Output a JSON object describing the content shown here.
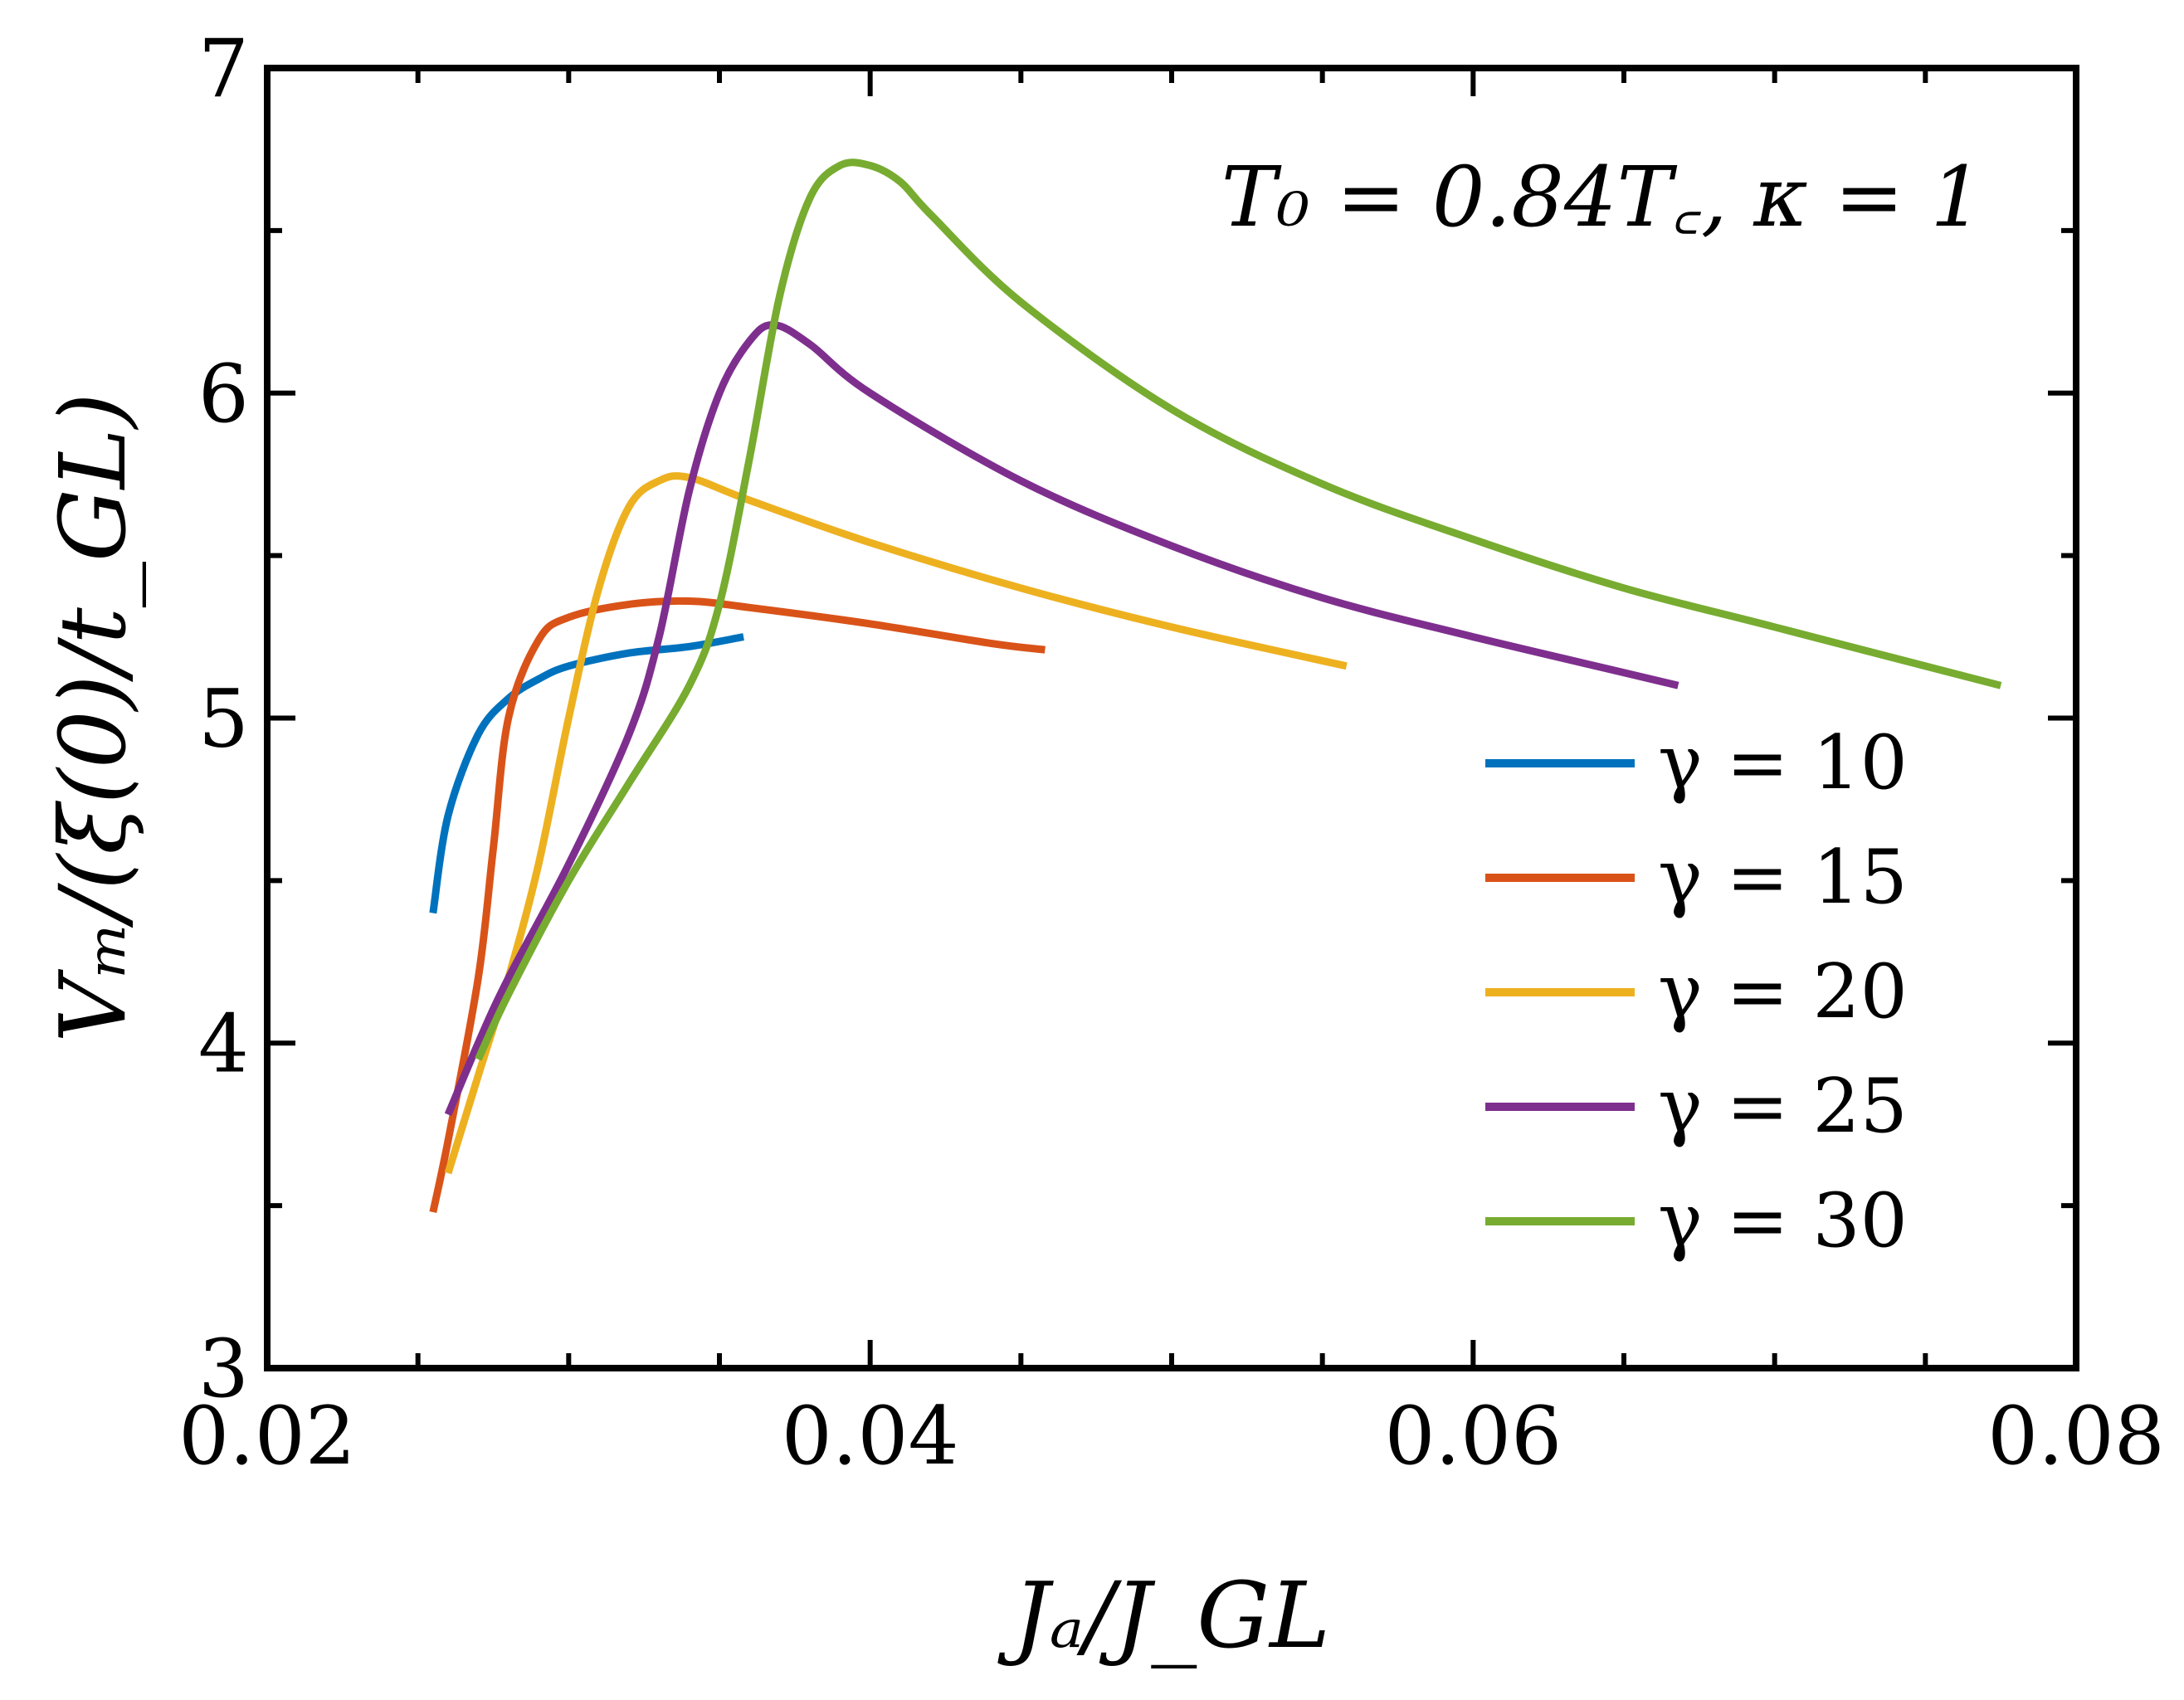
{
  "chart_data": {
    "type": "line",
    "annotation": "T₀ = 0.84T꜀,  κ = 1",
    "xlabel": "Jₐ/J_GL",
    "ylabel": "Vₘ/(ξ(0)/t_GL)",
    "xlim": [
      0.02,
      0.08
    ],
    "ylim": [
      3,
      7
    ],
    "xticks": [
      0.02,
      0.04,
      0.06,
      0.08
    ],
    "xtick_labels": [
      "0.02",
      "0.04",
      "0.06",
      "0.08"
    ],
    "yticks": [
      3,
      4,
      5,
      6,
      7
    ],
    "ytick_labels": [
      "3",
      "4",
      "5",
      "6",
      "7"
    ],
    "x_minor_step": 0.005,
    "y_minor_step": 0.5,
    "grid": false,
    "legend_position": "right",
    "series": [
      {
        "name": "γ = 10",
        "color": "#0072BD",
        "x": [
          0.0255,
          0.026,
          0.027,
          0.028,
          0.029,
          0.03,
          0.032,
          0.034,
          0.0358
        ],
        "y": [
          4.4,
          4.7,
          4.95,
          5.06,
          5.12,
          5.16,
          5.2,
          5.22,
          5.25
        ]
      },
      {
        "name": "γ = 15",
        "color": "#D95319",
        "x": [
          0.0255,
          0.026,
          0.027,
          0.0275,
          0.028,
          0.029,
          0.03,
          0.032,
          0.034,
          0.036,
          0.04,
          0.044,
          0.0458
        ],
        "y": [
          3.48,
          3.7,
          4.2,
          4.6,
          5.0,
          5.24,
          5.31,
          5.35,
          5.36,
          5.34,
          5.29,
          5.23,
          5.21
        ]
      },
      {
        "name": "γ = 20",
        "color": "#EDB120",
        "x": [
          0.026,
          0.027,
          0.028,
          0.029,
          0.03,
          0.031,
          0.032,
          0.033,
          0.034,
          0.036,
          0.04,
          0.045,
          0.05,
          0.0558
        ],
        "y": [
          3.6,
          3.9,
          4.2,
          4.55,
          5.0,
          5.4,
          5.65,
          5.73,
          5.74,
          5.67,
          5.54,
          5.4,
          5.28,
          5.16
        ]
      },
      {
        "name": "γ = 25",
        "color": "#7E2F8E",
        "x": [
          0.026,
          0.027,
          0.028,
          0.03,
          0.032,
          0.033,
          0.034,
          0.035,
          0.036,
          0.0368,
          0.038,
          0.04,
          0.045,
          0.05,
          0.055,
          0.06,
          0.065,
          0.0668
        ],
        "y": [
          3.78,
          4.0,
          4.2,
          4.55,
          4.95,
          5.25,
          5.7,
          6.0,
          6.16,
          6.21,
          6.15,
          6.0,
          5.73,
          5.53,
          5.37,
          5.25,
          5.14,
          5.1
        ]
      },
      {
        "name": "γ = 30",
        "color": "#77AC30",
        "x": [
          0.027,
          0.028,
          0.03,
          0.032,
          0.034,
          0.035,
          0.036,
          0.037,
          0.038,
          0.039,
          0.04,
          0.041,
          0.042,
          0.045,
          0.05,
          0.055,
          0.06,
          0.065,
          0.07,
          0.0775
        ],
        "y": [
          3.95,
          4.15,
          4.5,
          4.8,
          5.1,
          5.35,
          5.8,
          6.3,
          6.6,
          6.7,
          6.7,
          6.65,
          6.55,
          6.28,
          5.95,
          5.72,
          5.55,
          5.4,
          5.28,
          5.1
        ]
      }
    ]
  }
}
